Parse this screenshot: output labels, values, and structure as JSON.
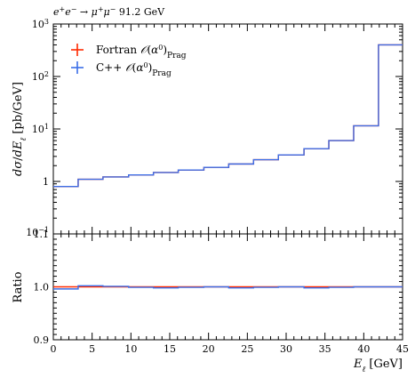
{
  "chart_data": [
    {
      "type": "line",
      "panel": "main",
      "process_label_parts": [
        "e",
        "+",
        "e",
        "−",
        " → ",
        "μ",
        "+",
        "μ",
        "−",
        " 91.2 GeV"
      ],
      "ylabel": "dσ/dE_ℓ [pb/GeV]",
      "yscale": "log",
      "ylim": [
        0.1,
        1000
      ],
      "xlim": [
        0,
        45
      ],
      "y_tick_labels": [
        "10^-1",
        "1",
        "10^1",
        "10^2",
        "10^3"
      ],
      "legend_position": "top-left",
      "legend": [
        {
          "text": "Fortran 𝒪(α⁰)Prag",
          "color": "#ff2a00"
        },
        {
          "text": "C++ 𝒪(α⁰)Prag",
          "color": "#3b6ee8"
        }
      ],
      "bin_edges": [
        0,
        3.2,
        6.4,
        9.7,
        12.9,
        16.1,
        19.4,
        22.6,
        25.8,
        29.0,
        32.3,
        35.5,
        38.7,
        41.9,
        45
      ],
      "series": [
        {
          "name": "Fortran 𝒪(α⁰)Prag",
          "values": [
            0.8,
            1.1,
            1.22,
            1.33,
            1.48,
            1.65,
            1.85,
            2.15,
            2.6,
            3.2,
            4.2,
            6.0,
            11.5,
            400
          ],
          "color": "#ff2a00"
        },
        {
          "name": "C++ 𝒪(α⁰)Prag",
          "values": [
            0.8,
            1.1,
            1.22,
            1.33,
            1.48,
            1.65,
            1.85,
            2.15,
            2.6,
            3.2,
            4.2,
            6.0,
            11.5,
            400
          ],
          "color": "#3b6ee8"
        }
      ]
    },
    {
      "type": "line",
      "panel": "ratio",
      "ylabel": "Ratio",
      "xlabel": "E_ℓ [GeV]",
      "ylim": [
        0.9,
        1.1
      ],
      "xlim": [
        0,
        45
      ],
      "y_ticks": [
        0.9,
        1.0,
        1.1
      ],
      "y_tick_labels": [
        "0.9",
        "1.0",
        "1.1"
      ],
      "x_ticks": [
        0,
        5,
        10,
        15,
        20,
        25,
        30,
        35,
        40,
        45
      ],
      "x_tick_labels": [
        "0",
        "5",
        "10",
        "15",
        "20",
        "25",
        "30",
        "35",
        "40",
        "45"
      ],
      "bin_edges": [
        0,
        3.2,
        6.4,
        9.7,
        12.9,
        16.1,
        19.4,
        22.6,
        25.8,
        29.0,
        32.3,
        35.5,
        38.7,
        41.9,
        45
      ],
      "series": [
        {
          "name": "Fortran 𝒪(α⁰)Prag",
          "values": [
            1.0,
            1.0,
            1.0,
            1.0,
            1.0,
            1.0,
            1.0,
            1.0,
            1.0,
            1.0,
            1.0,
            1.0,
            1.0,
            1.0
          ],
          "color": "#ff2a00"
        },
        {
          "name": "C++ 𝒪(α⁰)Prag",
          "values": [
            0.996,
            1.002,
            1.001,
            0.999,
            0.998,
            0.999,
            1.0,
            0.998,
            0.999,
            1.0,
            0.998,
            0.999,
            1.0,
            1.0
          ],
          "color": "#3b6ee8"
        }
      ]
    }
  ]
}
